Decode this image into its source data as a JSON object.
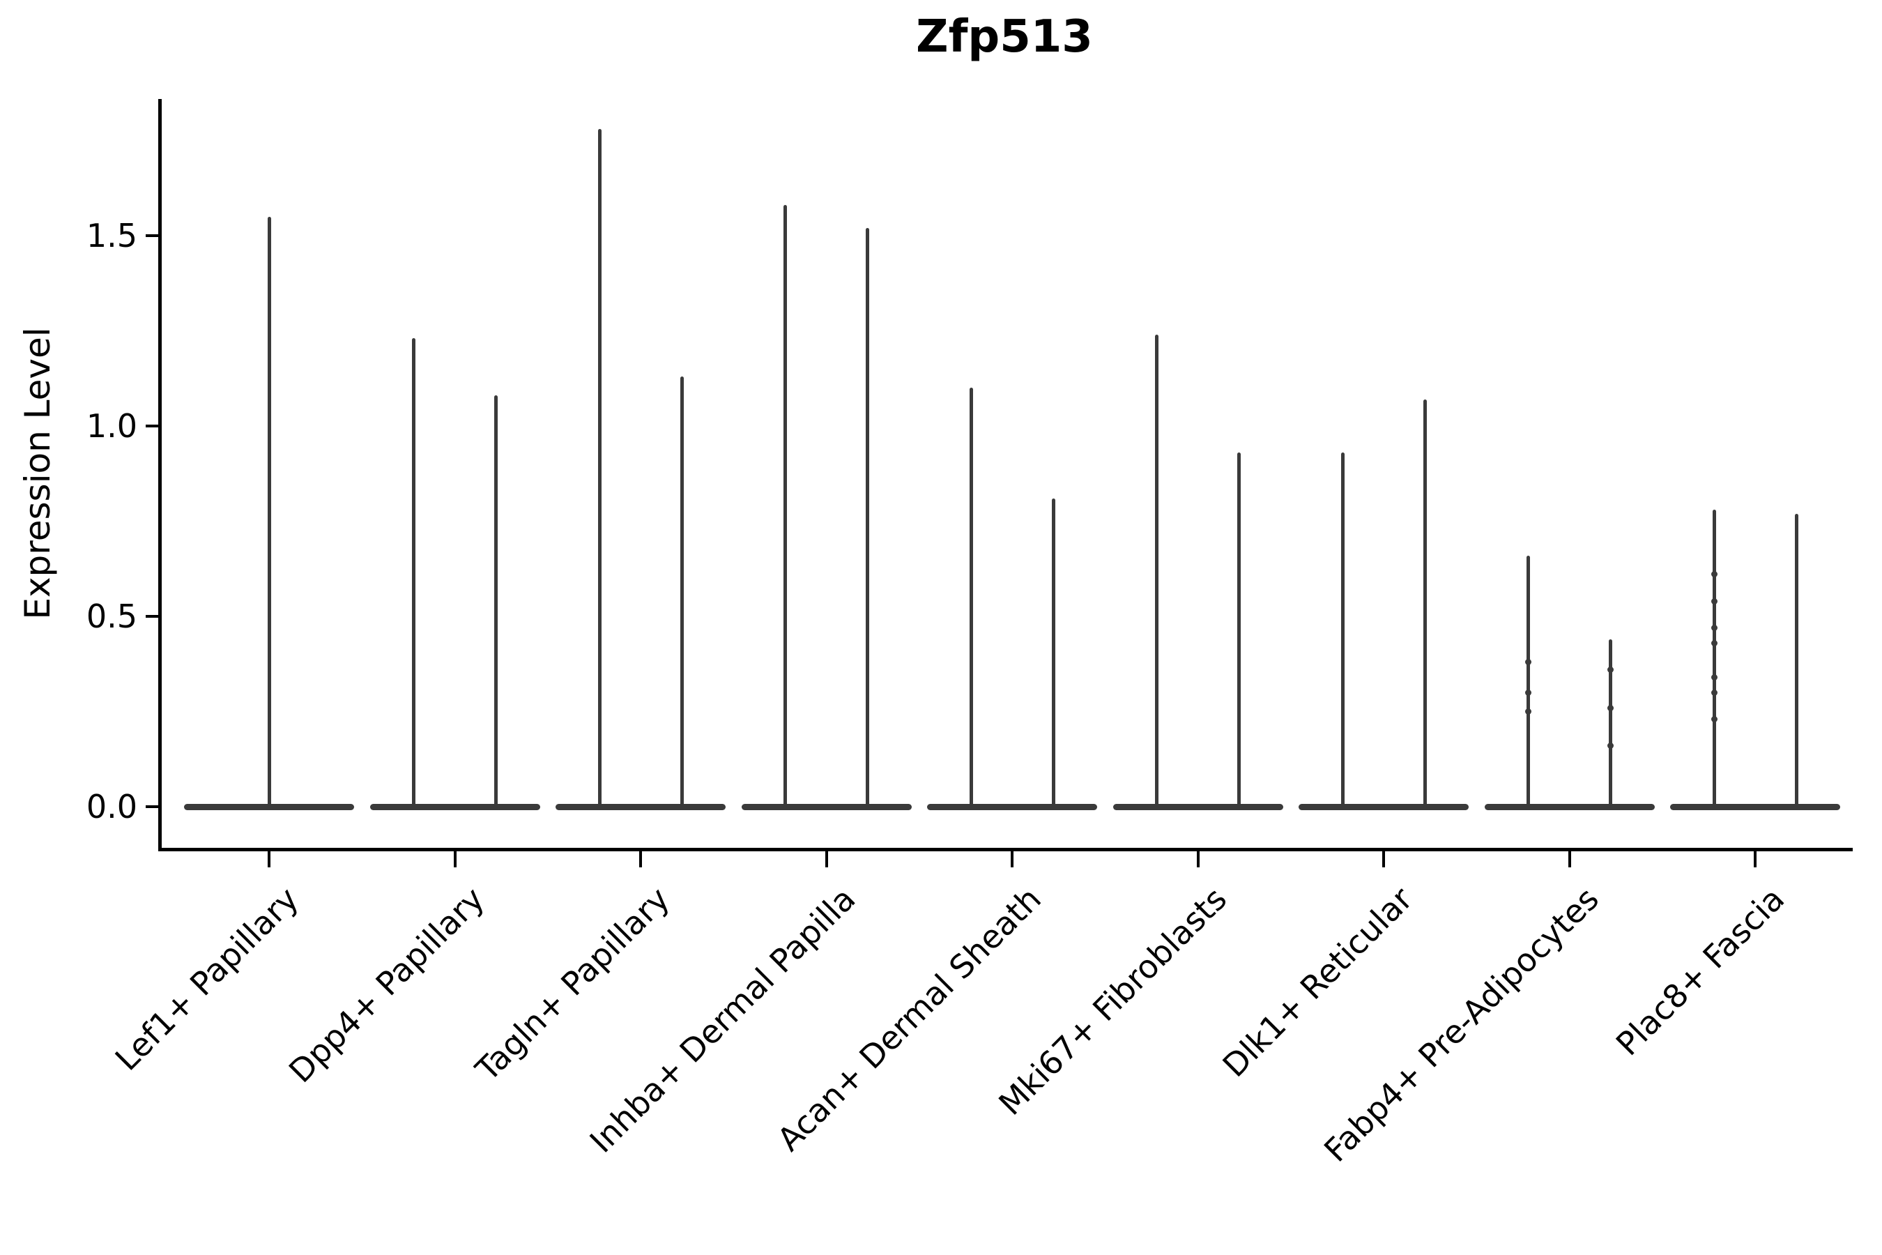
{
  "title": "Zfp513",
  "y_axis": {
    "label": "Expression Level"
  },
  "colors": {
    "violin": "#3a3a3a",
    "axis": "#000000",
    "text": "#000000",
    "background": "#ffffff"
  },
  "chart_data": {
    "type": "violin",
    "title": "Zfp513",
    "xlabel": "",
    "ylabel": "Expression Level",
    "ylim": [
      -0.11,
      1.86
    ],
    "yticks": [
      0.0,
      0.5,
      1.0,
      1.5
    ],
    "ytick_labels": [
      "0.0",
      "0.5",
      "1.0",
      "1.5"
    ],
    "grid": false,
    "legend_position": "none",
    "x_tick_rotation": 45,
    "categories": [
      "Lef1+ Papillary",
      "Dpp4+ Papillary",
      "Tagln+ Papillary",
      "Inhba+ Dermal Papilla",
      "Acan+ Dermal Sheath",
      "Mki67+ Fibroblasts",
      "Dlk1+ Reticular",
      "Fabp4+ Pre-Adipocytes",
      "Plac8+ Fascia"
    ],
    "violins": [
      {
        "category": "Lef1+ Papillary",
        "shapes": [
          {
            "position": "center",
            "max": 1.55,
            "bulk_value": 0.0,
            "knots": []
          }
        ]
      },
      {
        "category": "Dpp4+ Papillary",
        "shapes": [
          {
            "position": "left",
            "max": 1.23,
            "bulk_value": 0.0,
            "knots": []
          },
          {
            "position": "right",
            "max": 1.08,
            "bulk_value": 0.0,
            "knots": []
          }
        ]
      },
      {
        "category": "Tagln+ Papillary",
        "shapes": [
          {
            "position": "left",
            "max": 1.78,
            "bulk_value": 0.0,
            "knots": []
          },
          {
            "position": "right",
            "max": 1.13,
            "bulk_value": 0.0,
            "knots": []
          }
        ]
      },
      {
        "category": "Inhba+ Dermal Papilla",
        "shapes": [
          {
            "position": "left",
            "max": 1.58,
            "bulk_value": 0.0,
            "knots": []
          },
          {
            "position": "right",
            "max": 1.52,
            "bulk_value": 0.0,
            "knots": []
          }
        ]
      },
      {
        "category": "Acan+ Dermal Sheath",
        "shapes": [
          {
            "position": "left",
            "max": 1.1,
            "bulk_value": 0.0,
            "knots": []
          },
          {
            "position": "right",
            "max": 0.81,
            "bulk_value": 0.0,
            "knots": []
          }
        ]
      },
      {
        "category": "Mki67+ Fibroblasts",
        "shapes": [
          {
            "position": "left",
            "max": 1.24,
            "bulk_value": 0.0,
            "knots": []
          },
          {
            "position": "right",
            "max": 0.93,
            "bulk_value": 0.0,
            "knots": []
          }
        ]
      },
      {
        "category": "Dlk1+ Reticular",
        "shapes": [
          {
            "position": "left",
            "max": 0.93,
            "bulk_value": 0.0,
            "knots": []
          },
          {
            "position": "right",
            "max": 1.07,
            "bulk_value": 0.0,
            "knots": []
          }
        ]
      },
      {
        "category": "Fabp4+ Pre-Adipocytes",
        "shapes": [
          {
            "position": "left",
            "max": 0.66,
            "bulk_value": 0.0,
            "knots": [
              0.38,
              0.3,
              0.25
            ]
          },
          {
            "position": "right",
            "max": 0.44,
            "bulk_value": 0.0,
            "knots": [
              0.36,
              0.26,
              0.16
            ]
          }
        ]
      },
      {
        "category": "Plac8+ Fascia",
        "shapes": [
          {
            "position": "left",
            "max": 0.78,
            "bulk_value": 0.0,
            "knots": [
              0.61,
              0.54,
              0.47,
              0.43,
              0.34,
              0.3,
              0.23
            ]
          },
          {
            "position": "right",
            "max": 0.77,
            "bulk_value": 0.0,
            "knots": []
          }
        ]
      }
    ]
  }
}
